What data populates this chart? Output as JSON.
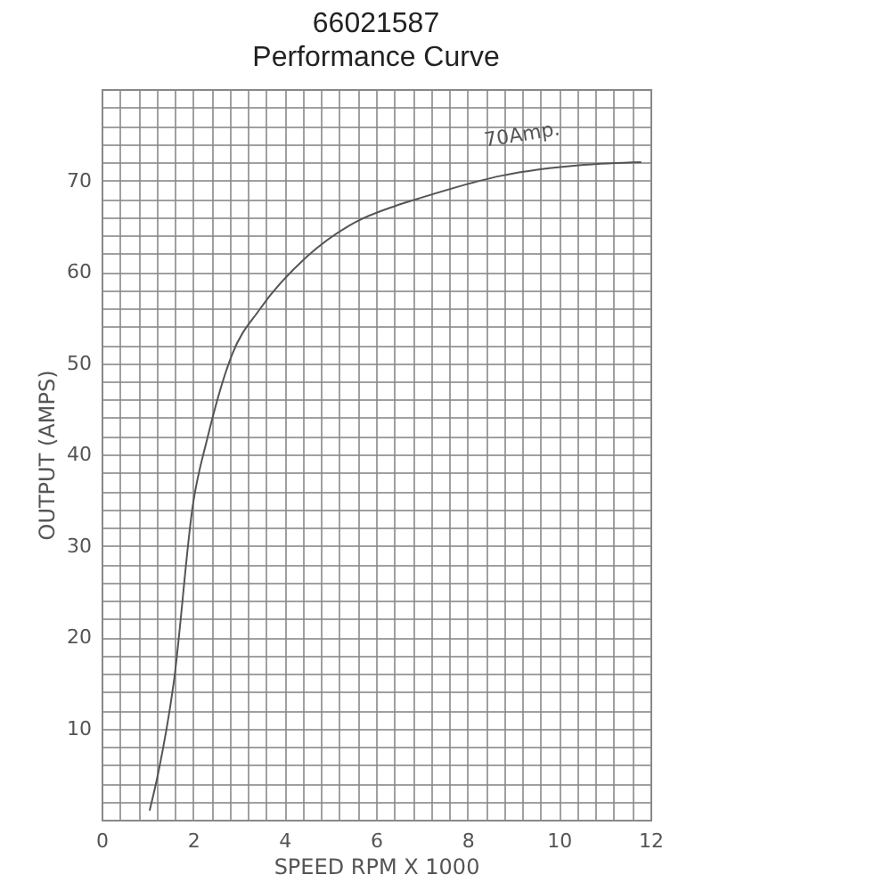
{
  "chart_data": {
    "type": "line",
    "title": "66021587",
    "subtitle": "Performance Curve",
    "xlabel": "SPEED RPM X 1000",
    "ylabel": "OUTPUT (AMPS)",
    "x": [
      1.05,
      1.23,
      1.58,
      2.0,
      2.31,
      2.85,
      3.46,
      4.5,
      5.54,
      6.42,
      6.92,
      8.73,
      10.54,
      11.8
    ],
    "series": [
      {
        "color": "#555555",
        "values": [
          1,
          4.9,
          15.1,
          34.6,
          41.7,
          50.9,
          55.9,
          61.7,
          65.4,
          67.2,
          68,
          70.5,
          71.7,
          72
        ]
      }
    ],
    "xlim": [
      0,
      12
    ],
    "ylim": [
      0,
      80
    ],
    "xticks": [
      0,
      {
        "value": 0.4,
        "label": null
      },
      {
        "value": 0.8,
        "label": null
      },
      {
        "value": 1.2,
        "label": null
      },
      {
        "value": 1.6,
        "label": null
      },
      2,
      {
        "value": 2.4,
        "label": null
      },
      {
        "value": 2.8,
        "label": null
      },
      {
        "value": 3.2,
        "label": null
      },
      {
        "value": 3.6,
        "label": null
      },
      4,
      {
        "value": 4.4,
        "label": null
      },
      {
        "value": 4.8,
        "label": null
      },
      {
        "value": 5.2,
        "label": null
      },
      {
        "value": 5.6,
        "label": null
      },
      6,
      {
        "value": 6.4,
        "label": null
      },
      {
        "value": 6.8,
        "label": null
      },
      {
        "value": 7.2,
        "label": null
      },
      {
        "value": 7.6,
        "label": null
      },
      8,
      {
        "value": 8.4,
        "label": null
      },
      {
        "value": 8.8,
        "label": null
      },
      {
        "value": 9.2,
        "label": null
      },
      {
        "value": 9.6,
        "label": null
      },
      10,
      {
        "value": 10.4,
        "label": null
      },
      {
        "value": 10.8,
        "label": null
      },
      {
        "value": 11.2,
        "label": null
      },
      {
        "value": 11.6,
        "label": null
      },
      12
    ],
    "yticks": [
      {
        "value": 0,
        "label": null
      },
      {
        "value": 2,
        "label": null
      },
      {
        "value": 4,
        "label": null
      },
      {
        "value": 6,
        "label": null
      },
      {
        "value": 8,
        "label": null
      },
      10,
      {
        "value": 12,
        "label": null
      },
      {
        "value": 14,
        "label": null
      },
      {
        "value": 16,
        "label": null
      },
      {
        "value": 18,
        "label": null
      },
      20,
      {
        "value": 22,
        "label": null
      },
      {
        "value": 24,
        "label": null
      },
      {
        "value": 26,
        "label": null
      },
      {
        "value": 28,
        "label": null
      },
      30,
      {
        "value": 32,
        "label": null
      },
      {
        "value": 34,
        "label": null
      },
      {
        "value": 36,
        "label": null
      },
      {
        "value": 38,
        "label": null
      },
      40,
      {
        "value": 42,
        "label": null
      },
      {
        "value": 44,
        "label": null
      },
      {
        "value": 46,
        "label": null
      },
      {
        "value": 48,
        "label": null
      },
      50,
      {
        "value": 52,
        "label": null
      },
      {
        "value": 54,
        "label": null
      },
      {
        "value": 56,
        "label": null
      },
      {
        "value": 58,
        "label": null
      },
      60,
      {
        "value": 62,
        "label": null
      },
      {
        "value": 64,
        "label": null
      },
      {
        "value": 66,
        "label": null
      },
      {
        "value": 68,
        "label": null
      },
      70,
      {
        "value": 72,
        "label": null
      },
      {
        "value": 74,
        "label": null
      },
      {
        "value": 76,
        "label": null
      },
      {
        "value": 78,
        "label": null
      },
      {
        "value": 80,
        "label": null
      }
    ],
    "grid": true,
    "annotations": [
      "70Amp."
    ]
  }
}
